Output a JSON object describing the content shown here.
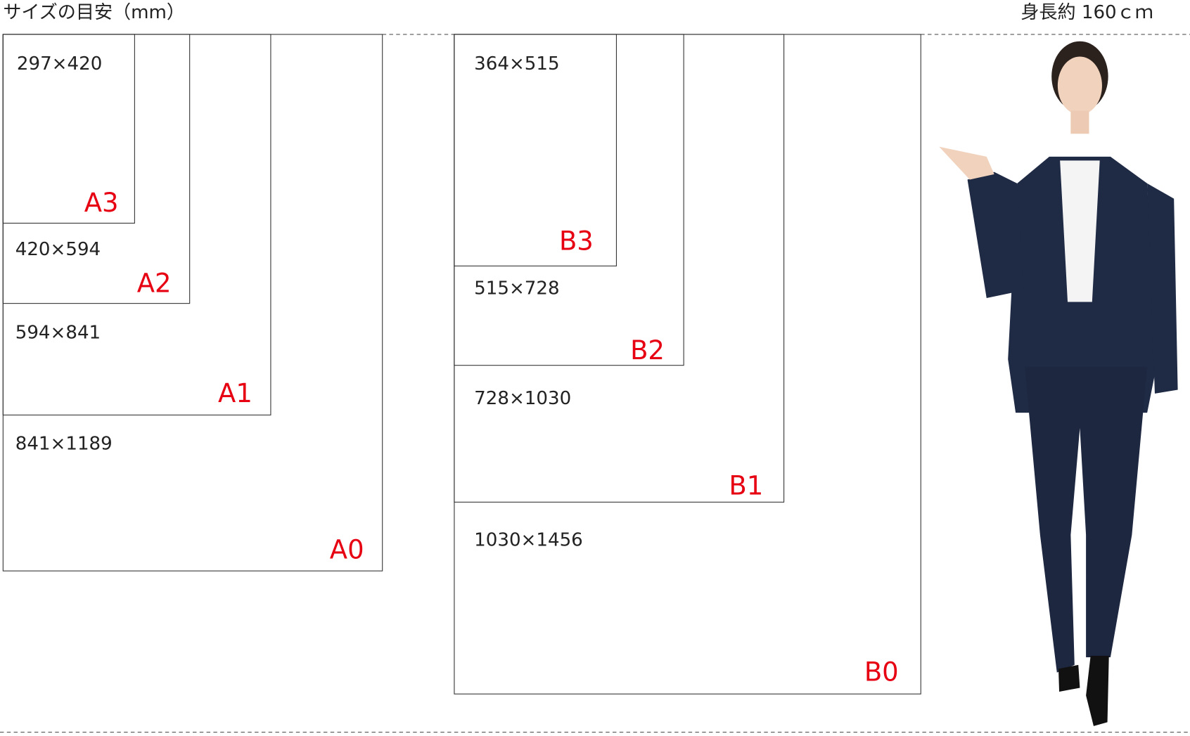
{
  "header": {
    "title": "サイズの目安（mm）",
    "height_note": "身長約 160ｃｍ"
  },
  "papers": [
    {
      "name": "A3",
      "size": "297×420"
    },
    {
      "name": "A2",
      "size": "420×594"
    },
    {
      "name": "A1",
      "size": "594×841"
    },
    {
      "name": "A0",
      "size": "841×1189"
    },
    {
      "name": "B3",
      "size": "364×515"
    },
    {
      "name": "B2",
      "size": "515×728"
    },
    {
      "name": "B1",
      "size": "728×1030"
    },
    {
      "name": "B0",
      "size": "1030×1456"
    }
  ]
}
